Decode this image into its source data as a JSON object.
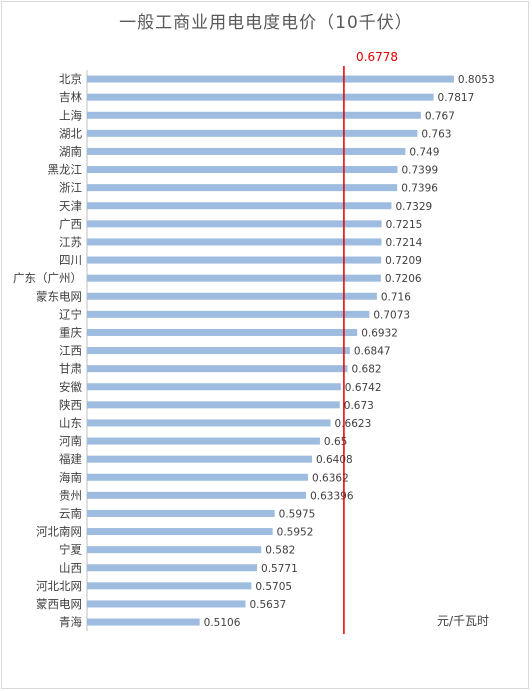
{
  "title": "一般工商业用电电度电价（10千伏）",
  "unit_label": "元/千瓦时",
  "reference": {
    "value": 0.6778,
    "label": "0.6778",
    "color": "#e00000"
  },
  "bar_color": "#9dbce0",
  "chart_data": {
    "type": "bar",
    "orientation": "horizontal",
    "title": "一般工商业用电电度电价（10千伏）",
    "xlabel": "元/千瓦时",
    "ylabel": "",
    "xlim": [
      0.38,
      0.84
    ],
    "grid": false,
    "reference_line": 0.6778,
    "categories": [
      "北京",
      "吉林",
      "上海",
      "湖北",
      "湖南",
      "黑龙江",
      "浙江",
      "天津",
      "广西",
      "江苏",
      "四川",
      "广东（广州）",
      "蒙东电网",
      "辽宁",
      "重庆",
      "江西",
      "甘肃",
      "安徽",
      "陕西",
      "山东",
      "河南",
      "福建",
      "海南",
      "贵州",
      "云南",
      "河北南网",
      "宁夏",
      "山西",
      "河北北网",
      "蒙西电网",
      "青海"
    ],
    "values": [
      0.8053,
      0.7817,
      0.767,
      0.763,
      0.749,
      0.7399,
      0.7396,
      0.7329,
      0.7215,
      0.7214,
      0.7209,
      0.7206,
      0.716,
      0.7073,
      0.6932,
      0.6847,
      0.682,
      0.6742,
      0.673,
      0.6623,
      0.65,
      0.6408,
      0.6362,
      0.63396,
      0.5975,
      0.5952,
      0.582,
      0.5771,
      0.5705,
      0.5637,
      0.5106
    ],
    "value_labels": [
      "0.8053",
      "0.7817",
      "0.767",
      "0.763",
      "0.749",
      "0.7399",
      "0.7396",
      "0.7329",
      "0.7215",
      "0.7214",
      "0.7209",
      "0.7206",
      "0.716",
      "0.7073",
      "0.6932",
      "0.6847",
      "0.682",
      "0.6742",
      "0.673",
      "0.6623",
      "0.65",
      "0.6408",
      "0.6362",
      "0.63396",
      "0.5975",
      "0.5952",
      "0.582",
      "0.5771",
      "0.5705",
      "0.5637",
      "0.5106"
    ]
  }
}
